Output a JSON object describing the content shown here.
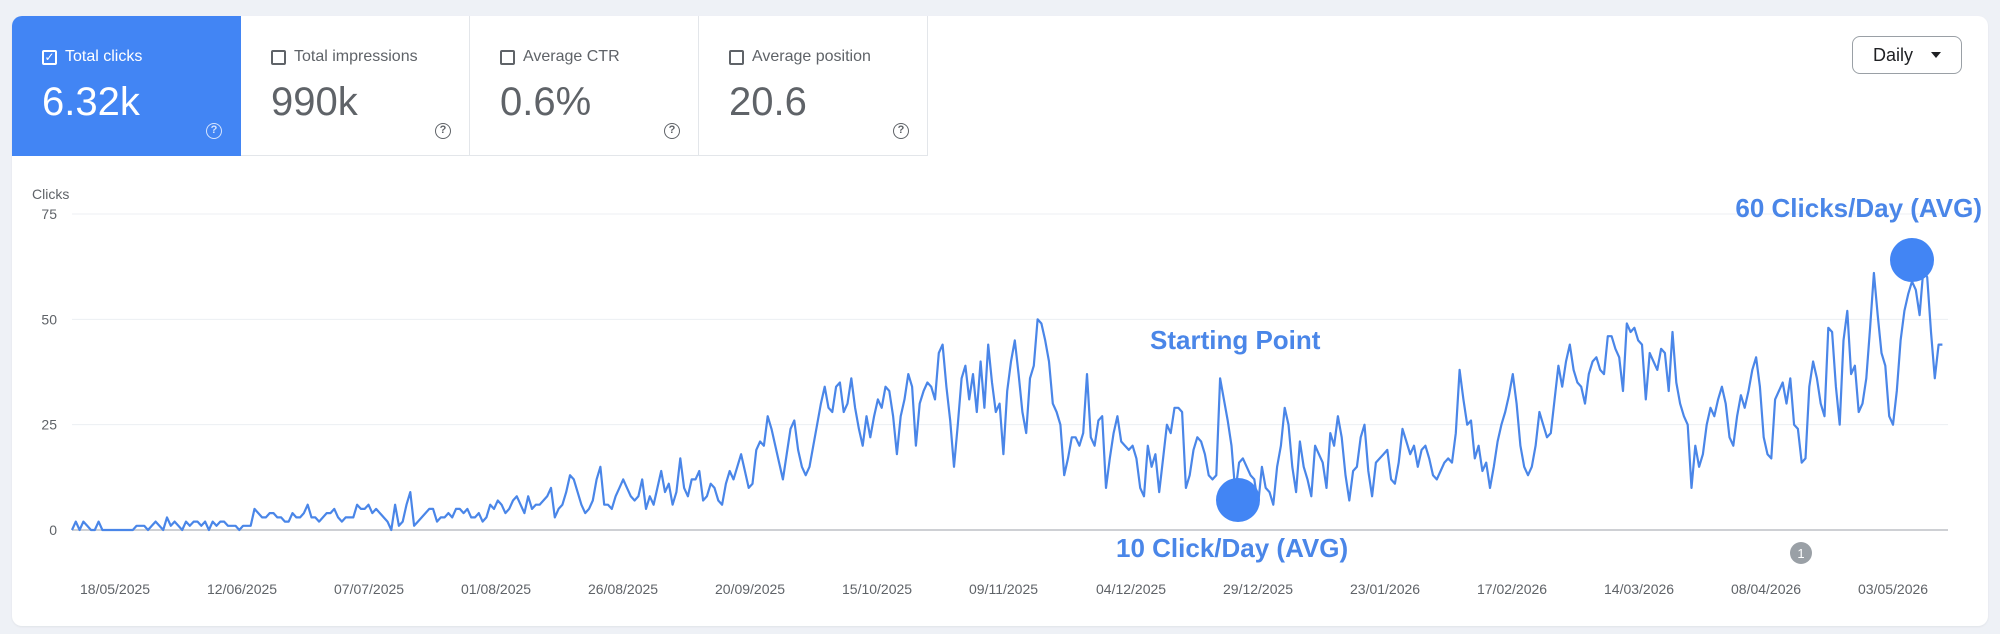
{
  "metrics": [
    {
      "label": "Total clicks",
      "value": "6.32k",
      "checked": true
    },
    {
      "label": "Total impressions",
      "value": "990k",
      "checked": false
    },
    {
      "label": "Average CTR",
      "value": "0.6%",
      "checked": false
    },
    {
      "label": "Average position",
      "value": "20.6",
      "checked": false
    }
  ],
  "dropdown": {
    "value": "Daily"
  },
  "icons": {
    "checkbox_checked": "✓",
    "help": "?"
  },
  "chart_data": {
    "type": "line",
    "ylabel": "Clicks",
    "ylim": [
      0,
      75
    ],
    "yticks": [
      "0",
      "25",
      "50",
      "75"
    ],
    "xticks": [
      "18/05/2025",
      "12/06/2025",
      "07/07/2025",
      "01/08/2025",
      "26/08/2025",
      "20/09/2025",
      "15/10/2025",
      "09/11/2025",
      "04/12/2025",
      "29/12/2025",
      "23/01/2026",
      "17/02/2026",
      "14/03/2026",
      "08/04/2026",
      "03/05/2026"
    ],
    "series_color": "#4a86e8",
    "values": [
      0,
      2,
      0,
      2,
      1,
      0,
      0,
      2,
      0,
      0,
      0,
      0,
      0,
      0,
      0,
      0,
      0,
      1,
      1,
      1,
      0,
      1,
      2,
      1,
      0,
      3,
      1,
      2,
      1,
      0,
      2,
      1,
      2,
      2,
      1,
      2,
      0,
      2,
      1,
      2,
      2,
      1,
      1,
      1,
      0,
      1,
      1,
      1,
      5,
      4,
      3,
      3,
      4,
      4,
      3,
      3,
      2,
      2,
      4,
      3,
      3,
      4,
      6,
      3,
      3,
      2,
      3,
      4,
      4,
      5,
      3,
      2,
      3,
      3,
      3,
      6,
      5,
      5,
      6,
      4,
      5,
      4,
      3,
      2,
      0,
      6,
      1,
      2,
      6,
      9,
      1,
      2,
      3,
      4,
      5,
      5,
      2,
      3,
      3,
      4,
      3,
      5,
      5,
      4,
      5,
      3,
      3,
      4,
      2,
      3,
      6,
      5,
      7,
      6,
      4,
      5,
      7,
      8,
      6,
      4,
      8,
      5,
      6,
      6,
      7,
      8,
      10,
      3,
      5,
      6,
      9,
      13,
      12,
      9,
      6,
      4,
      5,
      7,
      12,
      15,
      6,
      6,
      5,
      8,
      10,
      12,
      10,
      8,
      7,
      8,
      12,
      5,
      8,
      6,
      10,
      14,
      9,
      11,
      6,
      9,
      17,
      10,
      8,
      12,
      12,
      14,
      7,
      8,
      11,
      10,
      7,
      6,
      11,
      14,
      12,
      15,
      18,
      14,
      10,
      11,
      19,
      21,
      20,
      27,
      24,
      20,
      16,
      12,
      18,
      24,
      26,
      19,
      15,
      13,
      15,
      20,
      25,
      30,
      34,
      29,
      28,
      34,
      35,
      28,
      30,
      36,
      29,
      24,
      20,
      27,
      22,
      27,
      31,
      29,
      34,
      33,
      27,
      18,
      27,
      31,
      37,
      34,
      20,
      30,
      33,
      35,
      34,
      31,
      42,
      44,
      34,
      26,
      15,
      25,
      36,
      39,
      31,
      37,
      28,
      40,
      29,
      44,
      35,
      28,
      30,
      18,
      33,
      40,
      45,
      37,
      28,
      23,
      36,
      39,
      50,
      49,
      45,
      40,
      30,
      28,
      25,
      13,
      17,
      22,
      22,
      20,
      23,
      37,
      22,
      20,
      26,
      27,
      10,
      17,
      23,
      27,
      21,
      20,
      19,
      20,
      17,
      10,
      8,
      20,
      15,
      18,
      9,
      17,
      25,
      23,
      29,
      29,
      28,
      10,
      13,
      19,
      22,
      21,
      18,
      13,
      12,
      13,
      36,
      31,
      26,
      20,
      9,
      16,
      17,
      15,
      13,
      12,
      6,
      15,
      10,
      9,
      6,
      15,
      20,
      29,
      25,
      15,
      9,
      21,
      15,
      12,
      8,
      20,
      18,
      16,
      10,
      23,
      20,
      27,
      22,
      13,
      7,
      14,
      15,
      22,
      25,
      14,
      8,
      16,
      17,
      18,
      19,
      12,
      11,
      16,
      24,
      21,
      18,
      20,
      15,
      19,
      20,
      17,
      13,
      12,
      14,
      16,
      17,
      16,
      23,
      38,
      31,
      25,
      26,
      17,
      20,
      14,
      16,
      10,
      15,
      21,
      25,
      28,
      32,
      37,
      30,
      20,
      15,
      13,
      15,
      20,
      28,
      25,
      22,
      23,
      31,
      39,
      34,
      40,
      44,
      38,
      35,
      34,
      30,
      37,
      40,
      41,
      38,
      37,
      46,
      46,
      43,
      41,
      33,
      49,
      47,
      48,
      45,
      44,
      31,
      42,
      40,
      38,
      43,
      42,
      33,
      47,
      35,
      30,
      27,
      25,
      10,
      20,
      15,
      18,
      25,
      29,
      27,
      31,
      34,
      30,
      22,
      20,
      27,
      32,
      29,
      33,
      38,
      41,
      34,
      22,
      18,
      17,
      31,
      33,
      35,
      30,
      36,
      25,
      24,
      16,
      17,
      34,
      40,
      36,
      30,
      27,
      48,
      47,
      34,
      25,
      45,
      52,
      37,
      39,
      28,
      30,
      36,
      48,
      61,
      51,
      42,
      39,
      27,
      25,
      33,
      45,
      52,
      56,
      59,
      57,
      51,
      62,
      60,
      47,
      36,
      44,
      44
    ],
    "annotations": [
      {
        "text": "60 Clicks/Day (AVG)"
      },
      {
        "text": "Starting Point"
      },
      {
        "text": "10 Click/Day (AVG)"
      }
    ],
    "marker_badge": "1"
  }
}
